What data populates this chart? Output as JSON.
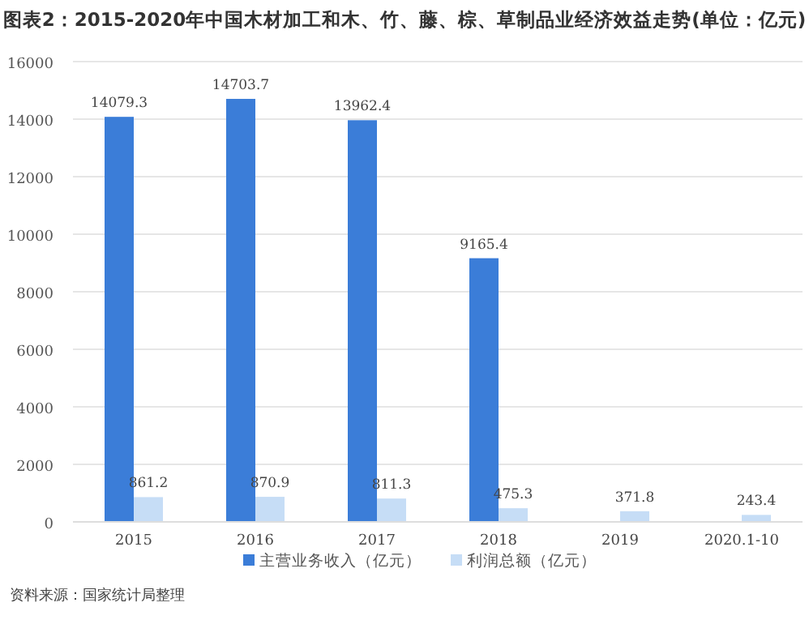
{
  "chart_data": {
    "type": "bar",
    "title": "图表2：2015-2020年中国木材加工和木、竹、藤、棕、草制品业经济效益走势(单位：亿元)",
    "categories": [
      "2015",
      "2016",
      "2017",
      "2018",
      "2019",
      "2020.1-10"
    ],
    "series": [
      {
        "name": "主营业务收入（亿元）",
        "color": "#3b7dd8",
        "values": [
          14079.3,
          14703.7,
          13962.4,
          9165.4,
          null,
          null
        ]
      },
      {
        "name": "利润总额（亿元）",
        "color": "#c6ddf6",
        "values": [
          861.2,
          870.9,
          811.3,
          475.3,
          371.8,
          243.4
        ]
      }
    ],
    "data_labels": true,
    "ylim": [
      0,
      16000
    ],
    "yticks": [
      0,
      2000,
      4000,
      6000,
      8000,
      10000,
      12000,
      14000,
      16000
    ],
    "grid": "y",
    "legend": "bottom",
    "annotations": [
      "资料来源：国家统计局整理"
    ]
  }
}
